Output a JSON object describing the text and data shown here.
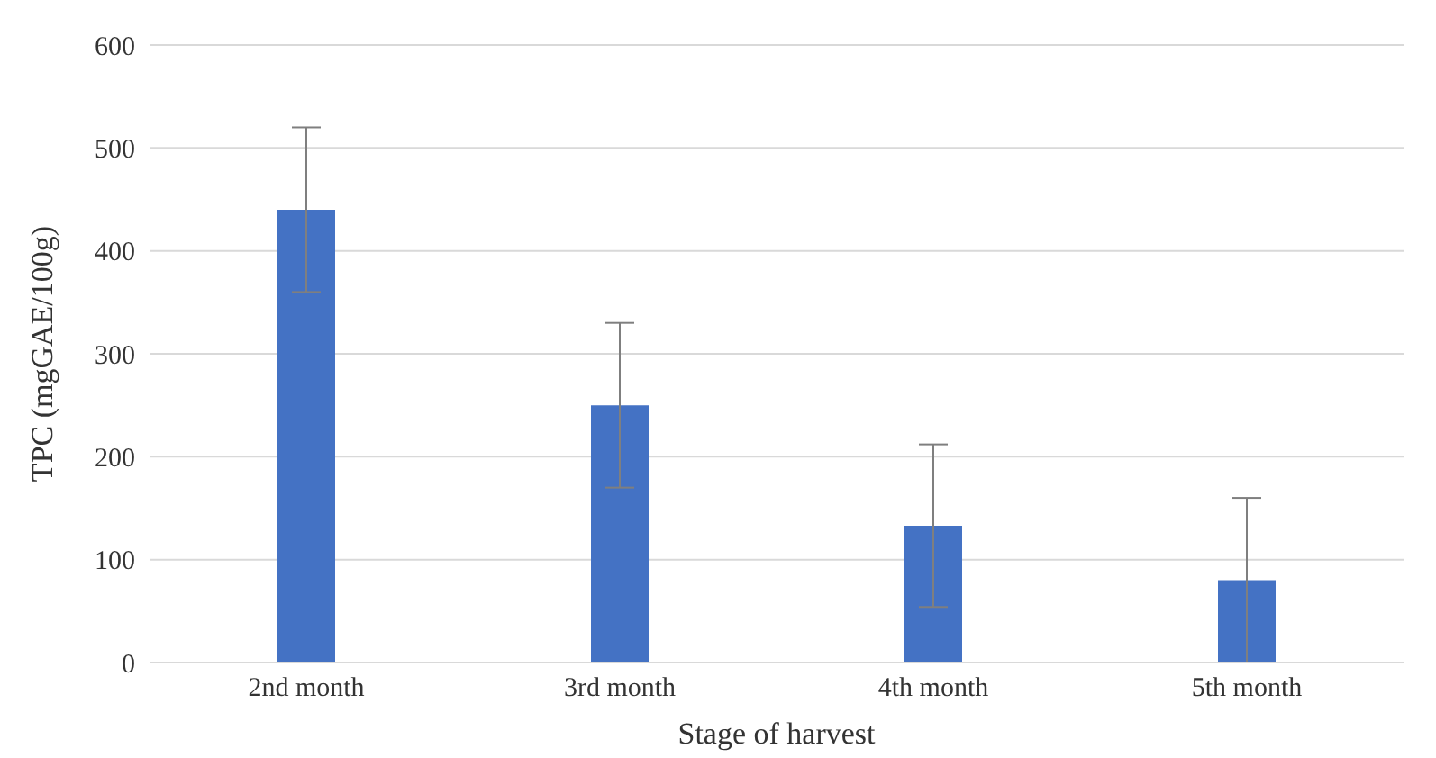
{
  "chart_data": {
    "type": "bar",
    "xlabel": "Stage of harvest",
    "ylabel": "TPC (mgGAE/100g)",
    "categories": [
      "2nd month",
      "3rd month",
      "4th month",
      "5th month"
    ],
    "values": [
      440,
      250,
      133,
      80
    ],
    "errors": [
      80,
      80,
      79,
      80
    ],
    "color": "#4472c4",
    "ylim": [
      0,
      600
    ],
    "yticks": [
      0,
      100,
      200,
      300,
      400,
      500,
      600
    ],
    "grid": "y"
  }
}
